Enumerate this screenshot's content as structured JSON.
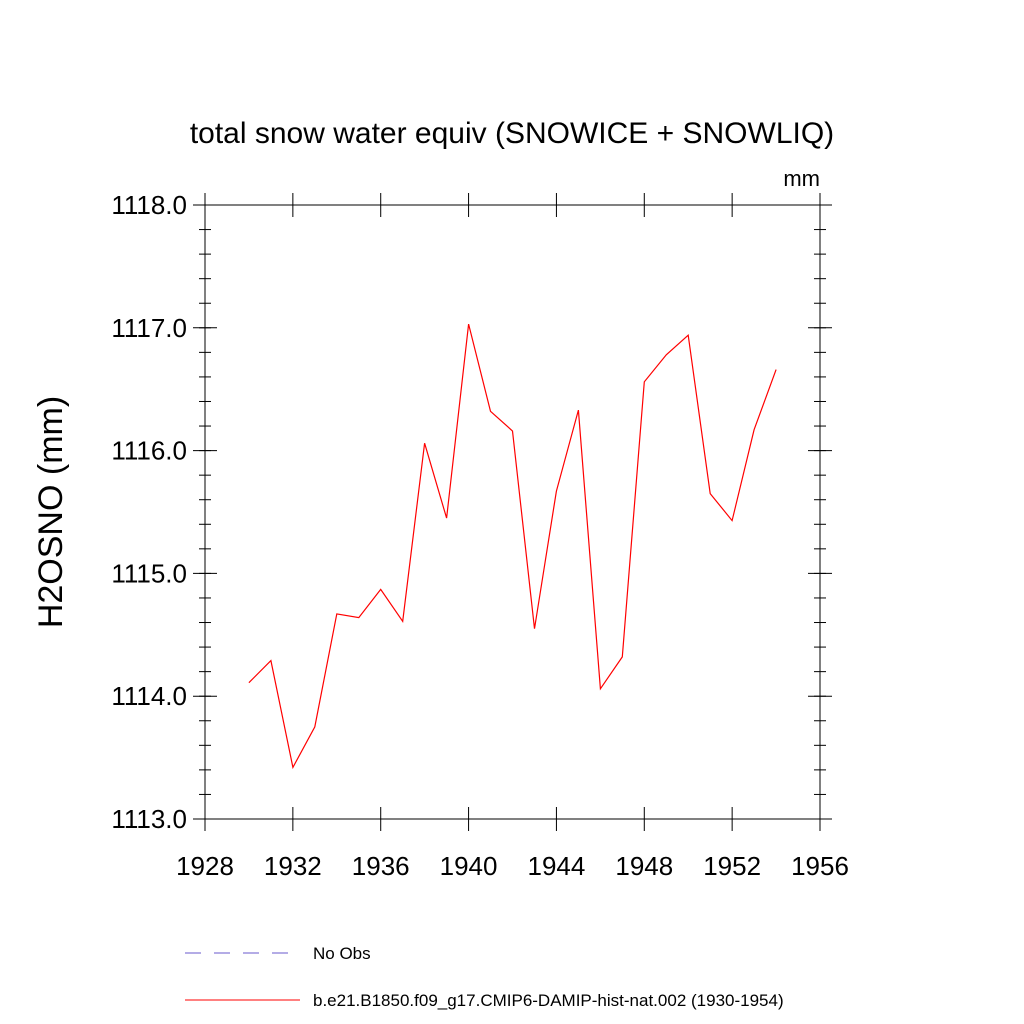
{
  "chart_data": {
    "type": "line",
    "title": "total snow water equiv (SNOWICE + SNOWLIQ)",
    "units": "mm",
    "xlabel": "",
    "ylabel": "H2OSNO  (mm)",
    "xlim": [
      1928,
      1956
    ],
    "ylim": [
      1113.0,
      1118.0
    ],
    "xticks": [
      1928,
      1932,
      1936,
      1940,
      1944,
      1948,
      1952,
      1956
    ],
    "xtick_labels": [
      "1928",
      "1932",
      "1936",
      "1940",
      "1944",
      "1948",
      "1952",
      "1956"
    ],
    "yticks": [
      1113.0,
      1114.0,
      1115.0,
      1116.0,
      1117.0,
      1118.0
    ],
    "ytick_labels": [
      "1113.0",
      "1114.0",
      "1115.0",
      "1116.0",
      "1117.0",
      "1118.0"
    ],
    "grid": false,
    "legend_position": "bottom",
    "series": [
      {
        "name": "b.e21.B1850.f09_g17.CMIP6-DAMIP-hist-nat.002 (1930-1954)",
        "color": "#ff0000",
        "dash": "solid",
        "x": [
          1930,
          1931,
          1932,
          1933,
          1934,
          1935,
          1936,
          1937,
          1938,
          1939,
          1940,
          1941,
          1942,
          1943,
          1944,
          1945,
          1946,
          1947,
          1948,
          1949,
          1950,
          1951,
          1952,
          1953,
          1954
        ],
        "y": [
          1114.11,
          1114.29,
          1113.42,
          1113.75,
          1114.67,
          1114.64,
          1114.87,
          1114.61,
          1116.06,
          1115.45,
          1117.03,
          1116.32,
          1116.16,
          1114.55,
          1115.67,
          1116.33,
          1114.06,
          1114.32,
          1116.56,
          1116.78,
          1116.94,
          1115.65,
          1115.43,
          1116.17,
          1116.66
        ]
      }
    ],
    "legend": [
      {
        "label": "No Obs",
        "color": "#6a5acd",
        "dash": "dashed"
      },
      {
        "label": "b.e21.B1850.f09_g17.CMIP6-DAMIP-hist-nat.002 (1930-1954)",
        "color": "#ff0000",
        "dash": "solid"
      }
    ]
  }
}
